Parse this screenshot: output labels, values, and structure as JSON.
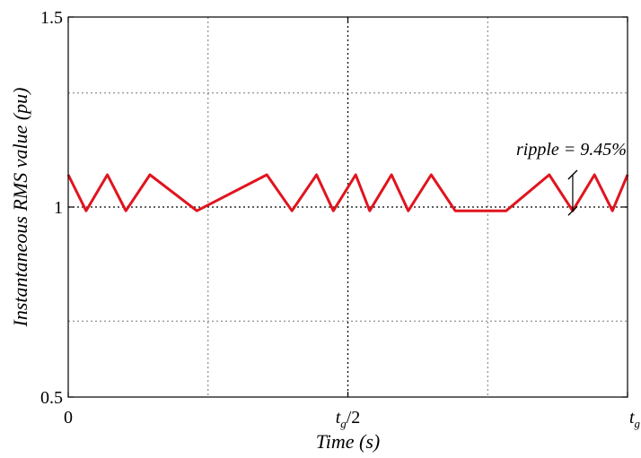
{
  "chart_data": {
    "type": "line",
    "title": "",
    "xlabel": "Time (s)",
    "ylabel": "Instantaneous RMS value (pu)",
    "xlim": [
      0,
      1
    ],
    "ylim": [
      0.5,
      1.5
    ],
    "x_ticks": [
      {
        "value": 0,
        "base": "0",
        "sub": "",
        "suffix": ""
      },
      {
        "value": 0.5,
        "base": "t",
        "sub": "g",
        "suffix": "/2"
      },
      {
        "value": 1,
        "base": "t",
        "sub": "g",
        "suffix": ""
      }
    ],
    "y_ticks": [
      {
        "value": 0.5,
        "label": "0.5"
      },
      {
        "value": 1,
        "label": "1"
      },
      {
        "value": 1.5,
        "label": "1.5"
      }
    ],
    "grid": true,
    "dotted_gridlines_x": [
      0.25,
      0.5,
      0.75
    ],
    "dotted_gridlines_y": [
      0.7,
      1.0,
      1.3
    ],
    "series": [
      {
        "color": "#e0141e",
        "x": [
          0,
          0.032,
          0.07,
          0.103,
          0.146,
          0.23,
          0.355,
          0.4,
          0.444,
          0.474,
          0.514,
          0.539,
          0.578,
          0.608,
          0.649,
          0.692,
          0.783,
          0.86,
          0.902,
          0.941,
          0.973,
          1.0
        ],
        "y": [
          1.085,
          0.99,
          1.085,
          0.99,
          1.085,
          0.99,
          1.085,
          0.99,
          1.085,
          0.99,
          1.085,
          0.99,
          1.085,
          0.99,
          1.085,
          0.99,
          0.99,
          1.085,
          0.99,
          1.085,
          0.99,
          1.085
        ]
      }
    ],
    "annotations": [
      {
        "text": "ripple = 9.45%",
        "x": 0.902,
        "y_top": 1.085,
        "y_bottom": 0.99
      }
    ]
  }
}
